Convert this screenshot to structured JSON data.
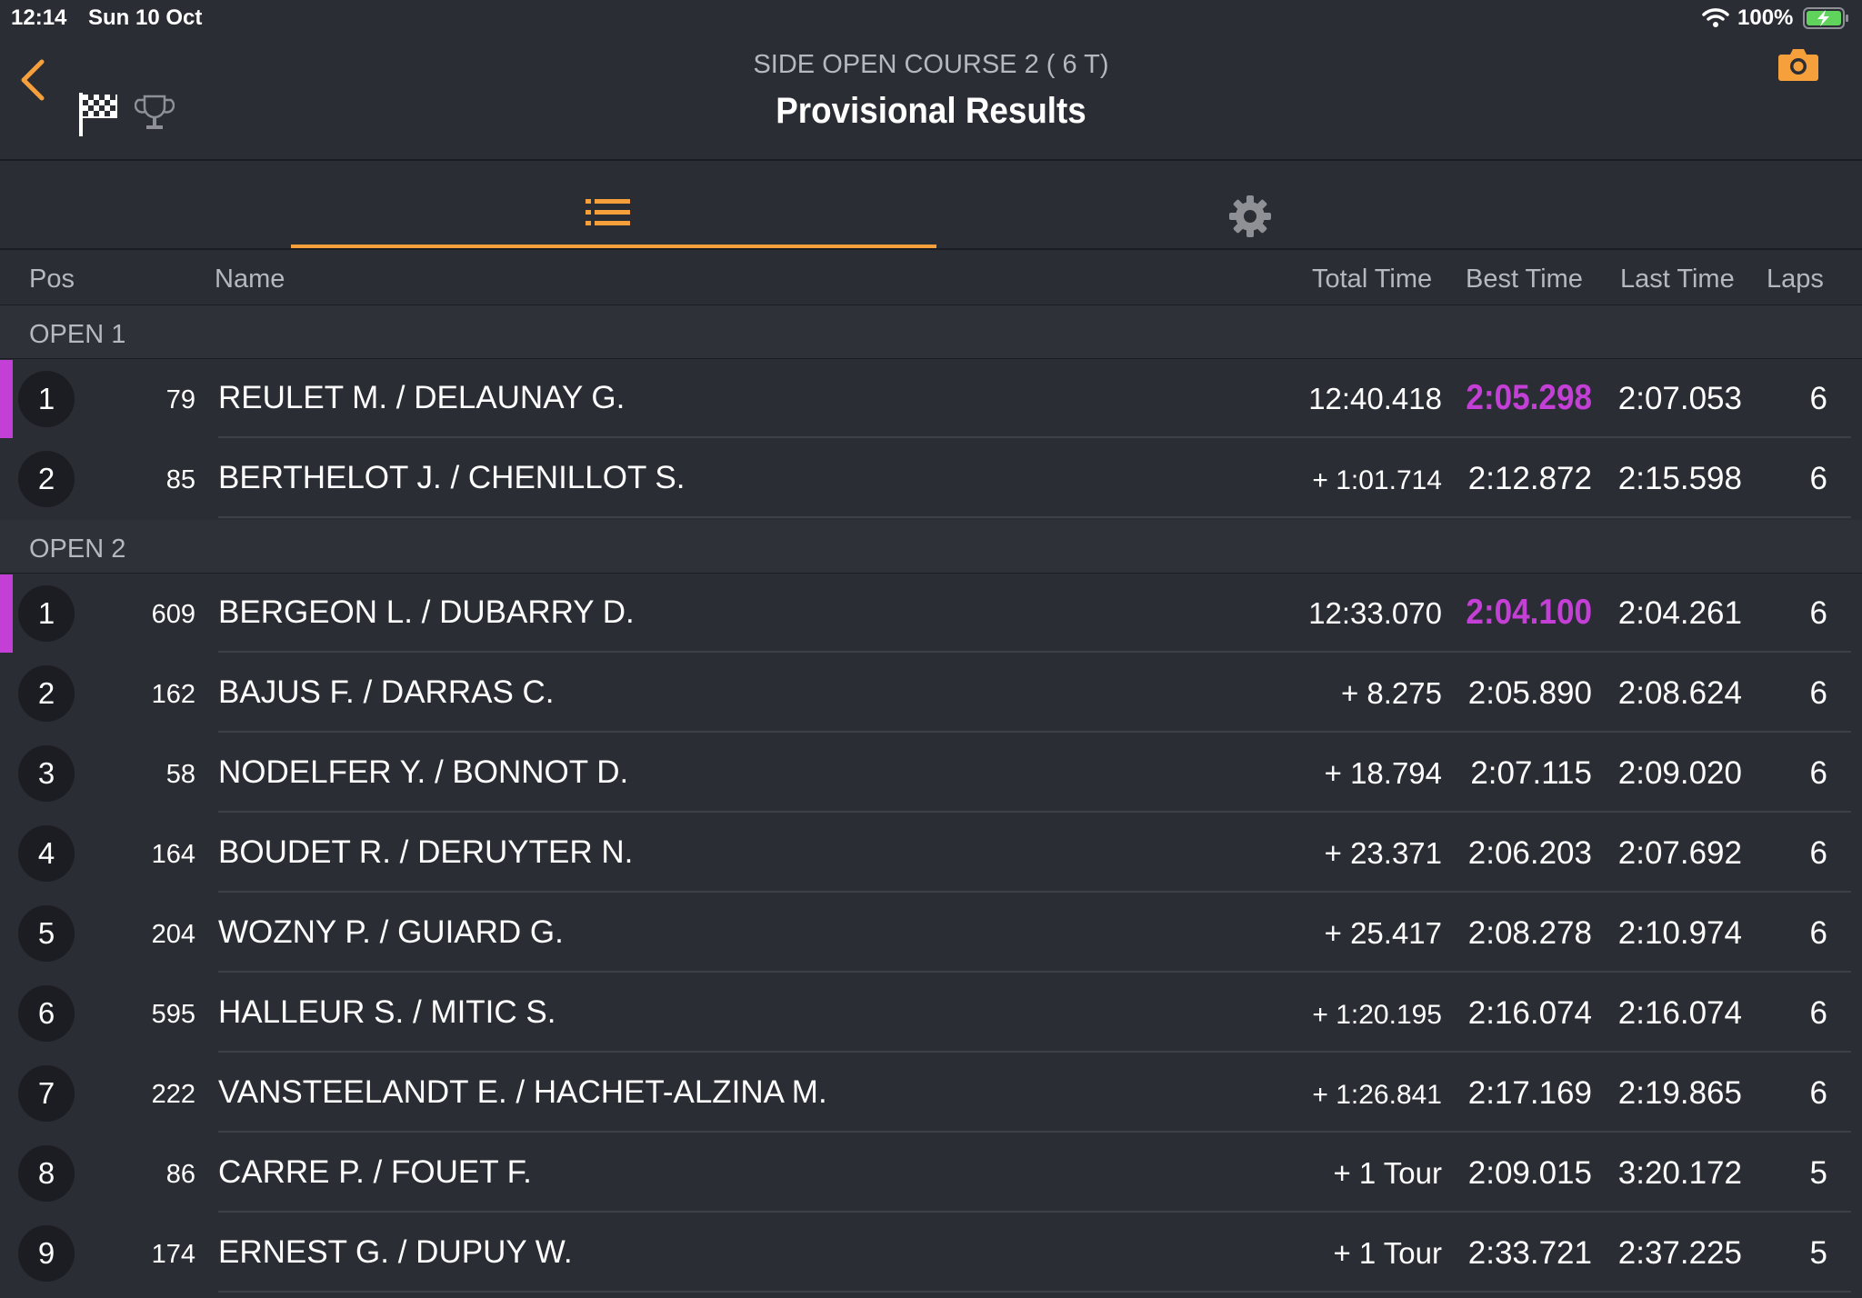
{
  "status_bar": {
    "time": "12:14",
    "date": "Sun 10 Oct",
    "battery": "100%"
  },
  "header": {
    "subtitle": "SIDE OPEN COURSE 2  ( 6 T)",
    "title": "Provisional Results"
  },
  "columns": {
    "pos": "Pos",
    "name": "Name",
    "total": "Total Time",
    "best": "Best Time",
    "last": "Last Time",
    "laps": "Laps"
  },
  "colors": {
    "accent": "#f5a03a",
    "fastest": "#c43fd6",
    "background": "#2b2d35"
  },
  "groups": [
    {
      "label": "OPEN 1",
      "rows": [
        {
          "pos": "1",
          "bib": "79",
          "name": "REULET M. / DELAUNAY G.",
          "total": "12:40.418",
          "best": "2:05.298",
          "last": "2:07.053",
          "laps": "6",
          "fastest": true
        },
        {
          "pos": "2",
          "bib": "85",
          "name": "BERTHELOT J. / CHENILLOT S.",
          "total": "+ 1:01.714",
          "best": "2:12.872",
          "last": "2:15.598",
          "laps": "6",
          "fastest": false
        }
      ]
    },
    {
      "label": "OPEN 2",
      "rows": [
        {
          "pos": "1",
          "bib": "609",
          "name": "BERGEON L. / DUBARRY D.",
          "total": "12:33.070",
          "best": "2:04.100",
          "last": "2:04.261",
          "laps": "6",
          "fastest": true
        },
        {
          "pos": "2",
          "bib": "162",
          "name": "BAJUS F. / DARRAS C.",
          "total": "+ 8.275",
          "best": "2:05.890",
          "last": "2:08.624",
          "laps": "6",
          "fastest": false
        },
        {
          "pos": "3",
          "bib": "58",
          "name": "NODELFER Y. / BONNOT D.",
          "total": "+ 18.794",
          "best": "2:07.115",
          "last": "2:09.020",
          "laps": "6",
          "fastest": false
        },
        {
          "pos": "4",
          "bib": "164",
          "name": "BOUDET R. / DERUYTER N.",
          "total": "+ 23.371",
          "best": "2:06.203",
          "last": "2:07.692",
          "laps": "6",
          "fastest": false
        },
        {
          "pos": "5",
          "bib": "204",
          "name": "WOZNY P. / GUIARD G.",
          "total": "+ 25.417",
          "best": "2:08.278",
          "last": "2:10.974",
          "laps": "6",
          "fastest": false
        },
        {
          "pos": "6",
          "bib": "595",
          "name": "HALLEUR S. / MITIC S.",
          "total": "+ 1:20.195",
          "best": "2:16.074",
          "last": "2:16.074",
          "laps": "6",
          "fastest": false
        },
        {
          "pos": "7",
          "bib": "222",
          "name": "VANSTEELANDT E. / HACHET-ALZINA M.",
          "total": "+ 1:26.841",
          "best": "2:17.169",
          "last": "2:19.865",
          "laps": "6",
          "fastest": false
        },
        {
          "pos": "8",
          "bib": "86",
          "name": "CARRE P. / FOUET F.",
          "total": "+ 1 Tour",
          "best": "2:09.015",
          "last": "3:20.172",
          "laps": "5",
          "fastest": false
        },
        {
          "pos": "9",
          "bib": "174",
          "name": "ERNEST G. / DUPUY W.",
          "total": "+ 1 Tour",
          "best": "2:33.721",
          "last": "2:37.225",
          "laps": "5",
          "fastest": false
        }
      ]
    }
  ]
}
